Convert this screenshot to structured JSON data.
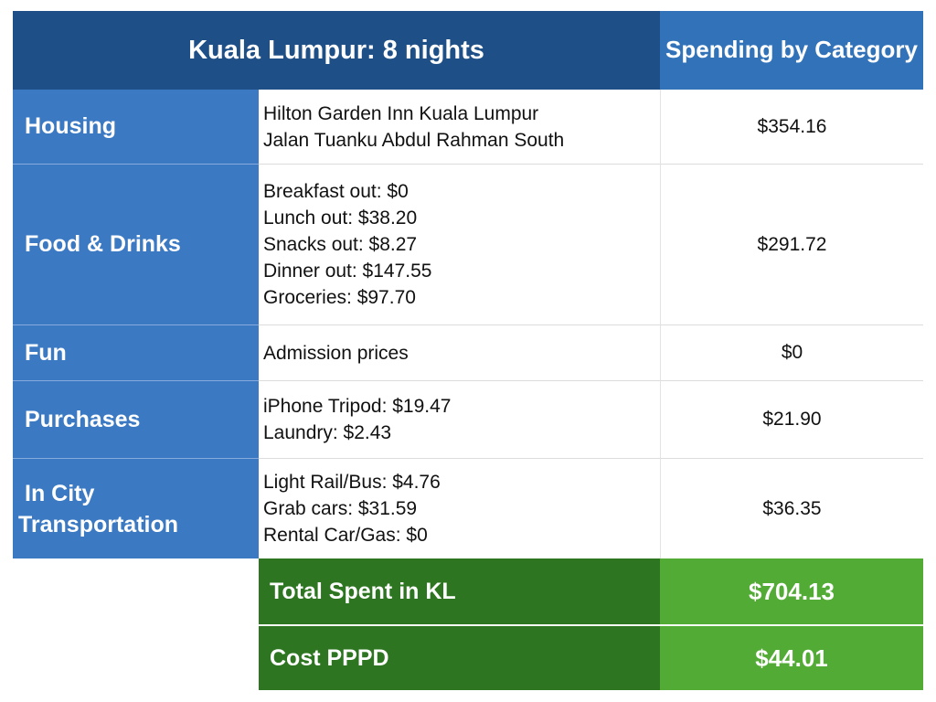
{
  "header": {
    "title": "Kuala Lumpur: 8 nights",
    "spending_label": "Spending by Category"
  },
  "rows": [
    {
      "category": [
        "Housing"
      ],
      "details": [
        "Hilton Garden Inn Kuala Lumpur",
        "Jalan Tuanku Abdul Rahman South"
      ],
      "amount": "$354.16"
    },
    {
      "category": [
        "Food & Drinks"
      ],
      "details": [
        "Breakfast out: $0",
        "Lunch out: $38.20",
        "Snacks out: $8.27",
        "Dinner out: $147.55",
        "Groceries: $97.70"
      ],
      "amount": "$291.72"
    },
    {
      "category": [
        "Fun"
      ],
      "details": [
        "Admission prices"
      ],
      "amount": "$0"
    },
    {
      "category": [
        "Purchases"
      ],
      "details": [
        "iPhone Tripod: $19.47",
        "Laundry: $2.43"
      ],
      "amount": "$21.90"
    },
    {
      "category": [
        "In City",
        "Transportation"
      ],
      "details": [
        "Light Rail/Bus: $4.76",
        "Grab cars: $31.59",
        "Rental Car/Gas: $0"
      ],
      "amount": "$36.35"
    }
  ],
  "totals": [
    {
      "label": "Total Spent in KL",
      "value": "$704.13"
    },
    {
      "label": "Cost PPPD",
      "value": "$44.01"
    }
  ],
  "colors": {
    "header_dark": "#1e4f86",
    "header_light": "#3172b9",
    "category_blue": "#3b79c3",
    "total_dark_green": "#2d7521",
    "total_light_green": "#52ab34"
  }
}
